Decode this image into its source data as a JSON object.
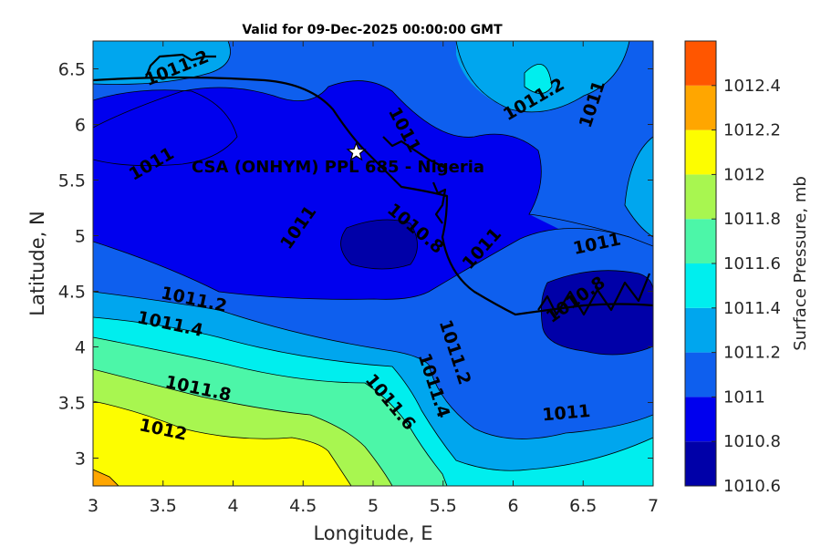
{
  "chart_data": {
    "type": "filled-contour",
    "title": "Valid for 09-Dec-2025 00:00:00 GMT",
    "xlabel": "Longitude, E",
    "ylabel": "Latitude, N",
    "xlim": [
      3,
      7
    ],
    "ylim": [
      2.75,
      6.75
    ],
    "xticks": [
      "3",
      "3.5",
      "4",
      "4.5",
      "5",
      "5.5",
      "6",
      "6.5",
      "7"
    ],
    "yticks": [
      "3",
      "3.5",
      "4",
      "4.5",
      "5",
      "5.5",
      "6",
      "6.5"
    ],
    "colorbar": {
      "label": "Surface Pressure, mb",
      "ticks": [
        "1010.6",
        "1010.8",
        "1011",
        "1011.2",
        "1011.4",
        "1011.6",
        "1011.8",
        "1012",
        "1012.2",
        "1012.4"
      ],
      "bands": [
        {
          "from": 1010.6,
          "to": 1010.8,
          "color": "#0000a8"
        },
        {
          "from": 1010.8,
          "to": 1011.0,
          "color": "#0000ee"
        },
        {
          "from": 1011.0,
          "to": 1011.2,
          "color": "#0e5fee"
        },
        {
          "from": 1011.2,
          "to": 1011.4,
          "color": "#00a6ee"
        },
        {
          "from": 1011.4,
          "to": 1011.6,
          "color": "#00eeee"
        },
        {
          "from": 1011.6,
          "to": 1011.8,
          "color": "#4cf6a8"
        },
        {
          "from": 1011.8,
          "to": 1012.0,
          "color": "#a8f650"
        },
        {
          "from": 1012.0,
          "to": 1012.2,
          "color": "#fdfd00"
        },
        {
          "from": 1012.2,
          "to": 1012.4,
          "color": "#ffa600"
        },
        {
          "from": 1012.4,
          "to": 1012.6,
          "color": "#ff5600"
        }
      ]
    },
    "site": {
      "name": "CSA (ONHYM) PPL 685 - Nigeria",
      "lon": 4.88,
      "lat": 5.75
    },
    "contour_labels": [
      {
        "text": "1011.2",
        "lon": 3.6,
        "lat": 6.5,
        "angle": -22
      },
      {
        "text": "1011",
        "lon": 5.22,
        "lat": 5.95,
        "angle": 62
      },
      {
        "text": "1011.2",
        "lon": 6.15,
        "lat": 6.22,
        "angle": -30
      },
      {
        "text": "1011",
        "lon": 6.57,
        "lat": 6.18,
        "angle": -72
      },
      {
        "text": "1011",
        "lon": 3.42,
        "lat": 5.64,
        "angle": -30
      },
      {
        "text": "1011",
        "lon": 4.47,
        "lat": 5.07,
        "angle": -55
      },
      {
        "text": "1010.8",
        "lon": 5.3,
        "lat": 5.06,
        "angle": 40
      },
      {
        "text": "1011",
        "lon": 5.78,
        "lat": 4.88,
        "angle": -48
      },
      {
        "text": "1011",
        "lon": 6.6,
        "lat": 4.92,
        "angle": -12
      },
      {
        "text": "1010.8",
        "lon": 6.45,
        "lat": 4.42,
        "angle": -35
      },
      {
        "text": "1011.2",
        "lon": 3.72,
        "lat": 4.42,
        "angle": 12
      },
      {
        "text": "1011.4",
        "lon": 3.55,
        "lat": 4.2,
        "angle": 12
      },
      {
        "text": "1011.2",
        "lon": 5.58,
        "lat": 3.95,
        "angle": 72
      },
      {
        "text": "1011.4",
        "lon": 5.43,
        "lat": 3.65,
        "angle": 72
      },
      {
        "text": "1011.8",
        "lon": 3.75,
        "lat": 3.62,
        "angle": 12
      },
      {
        "text": "1011.6",
        "lon": 5.12,
        "lat": 3.5,
        "angle": 50
      },
      {
        "text": "1011",
        "lon": 6.38,
        "lat": 3.4,
        "angle": -5
      },
      {
        "text": "1012",
        "lon": 3.5,
        "lat": 3.25,
        "angle": 12
      }
    ]
  }
}
